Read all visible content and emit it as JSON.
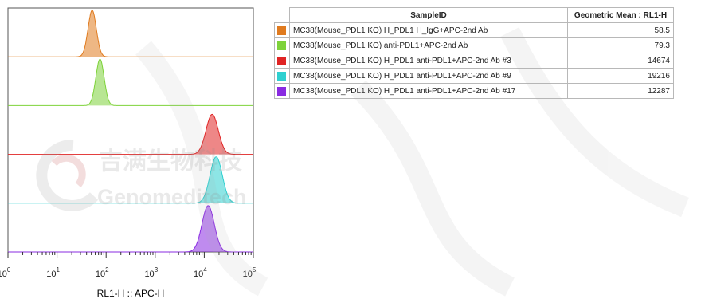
{
  "chart_data": {
    "type": "area",
    "xlabel": "RL1-H :: APC-H",
    "x_scale": "log",
    "xlim": [
      1,
      100000
    ],
    "x_ticks": [
      {
        "base": "10",
        "exp": "0",
        "value": 1
      },
      {
        "base": "10",
        "exp": "1",
        "value": 10
      },
      {
        "base": "10",
        "exp": "2",
        "value": 100
      },
      {
        "base": "10",
        "exp": "3",
        "value": 1000
      },
      {
        "base": "10",
        "exp": "4",
        "value": 10000
      },
      {
        "base": "10",
        "exp": "5",
        "value": 100000
      }
    ],
    "series": [
      {
        "name": "MC38(Mouse_PDL1 KO) H_PDL1 H_IgG+APC-2nd Ab",
        "geometric_mean": "58.5",
        "peak_x": 52,
        "color": "#e07b1f"
      },
      {
        "name": "MC38(Mouse_PDL1 KO) anti-PDL1+APC-2nd Ab",
        "geometric_mean": "79.3",
        "peak_x": 75,
        "color": "#7ed23a"
      },
      {
        "name": "MC38(Mouse_PDL1 KO) H_PDL1 anti-PDL1+APC-2nd Ab #3",
        "geometric_mean": "14674",
        "peak_x": 14500,
        "color": "#e02424"
      },
      {
        "name": "MC38(Mouse_PDL1 KO) H_PDL1 anti-PDL1+APC-2nd Ab #9",
        "geometric_mean": "19216",
        "peak_x": 17500,
        "color": "#2fd0d0"
      },
      {
        "name": "MC38(Mouse_PDL1 KO) H_PDL1 anti-PDL1+APC-2nd Ab #17",
        "geometric_mean": "12287",
        "peak_x": 12000,
        "color": "#8a2be2"
      }
    ]
  },
  "table": {
    "col_sample": "SampleID",
    "col_value": "Geometric Mean : RL1-H"
  },
  "watermark": {
    "cn": "吉满生物科技",
    "en": "Genomeditech"
  }
}
